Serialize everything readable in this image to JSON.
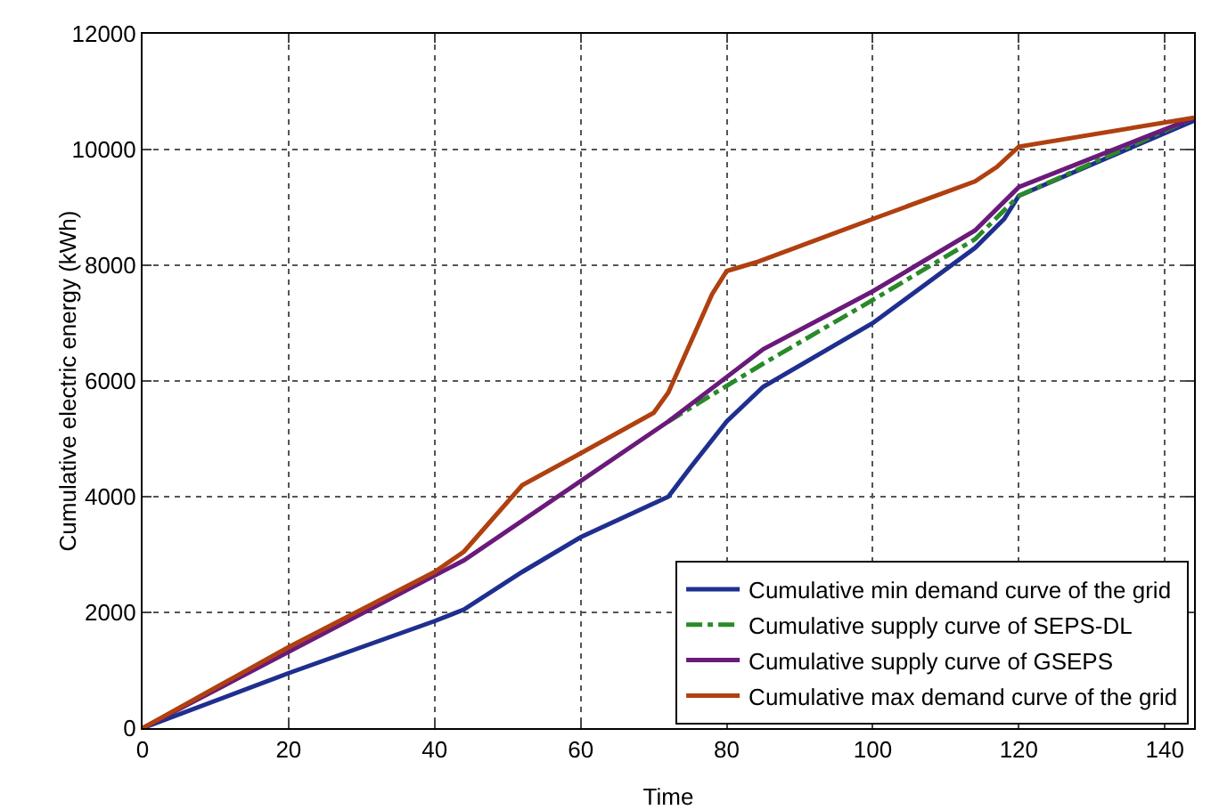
{
  "chart_data": {
    "type": "line",
    "xlabel": "Time",
    "ylabel": "Cumulative electric energy (kWh)",
    "xlim": [
      0,
      144
    ],
    "xticks": [
      0,
      20,
      40,
      60,
      80,
      100,
      120,
      140
    ],
    "ylim": [
      0,
      12000
    ],
    "yticks": [
      0,
      2000,
      4000,
      6000,
      8000,
      10000,
      12000
    ],
    "grid": true,
    "legend": "bottom right",
    "marker": "none",
    "series": [
      {
        "name": "Cumulative min demand curve of the grid",
        "color": "#1f2f8f",
        "line_style": "solid",
        "x": [
          0,
          20,
          40,
          44,
          52,
          60,
          72,
          75,
          80,
          85,
          100,
          114,
          118,
          120,
          144
        ],
        "values": [
          0,
          950,
          1850,
          2050,
          2700,
          3300,
          4000,
          4500,
          5300,
          5900,
          7000,
          8300,
          8800,
          9200,
          10500
        ]
      },
      {
        "name": "Cumulative supply curve of SEPS-DL",
        "color": "#2a8a2a",
        "line_style": "dashed",
        "x": [
          72,
          85,
          100,
          114,
          120,
          144
        ],
        "values": [
          5300,
          6300,
          7400,
          8450,
          9200,
          10550
        ]
      },
      {
        "name": "Cumulative supply curve of GSEPS",
        "color": "#6a1a7a",
        "line_style": "solid",
        "x": [
          0,
          44,
          72,
          85,
          100,
          114,
          120,
          144
        ],
        "values": [
          0,
          2900,
          5300,
          6550,
          7550,
          8600,
          9350,
          10550
        ]
      },
      {
        "name": "Cumulative max demand curve of the grid",
        "color": "#b04010",
        "line_style": "solid",
        "x": [
          0,
          10,
          20,
          30,
          40,
          44,
          52,
          60,
          70,
          72,
          78,
          80,
          84,
          100,
          114,
          117,
          120,
          144
        ],
        "values": [
          0,
          700,
          1400,
          2050,
          2700,
          3050,
          4200,
          4750,
          5450,
          5800,
          7500,
          7900,
          8050,
          8800,
          9450,
          9700,
          10050,
          10550
        ]
      }
    ]
  }
}
